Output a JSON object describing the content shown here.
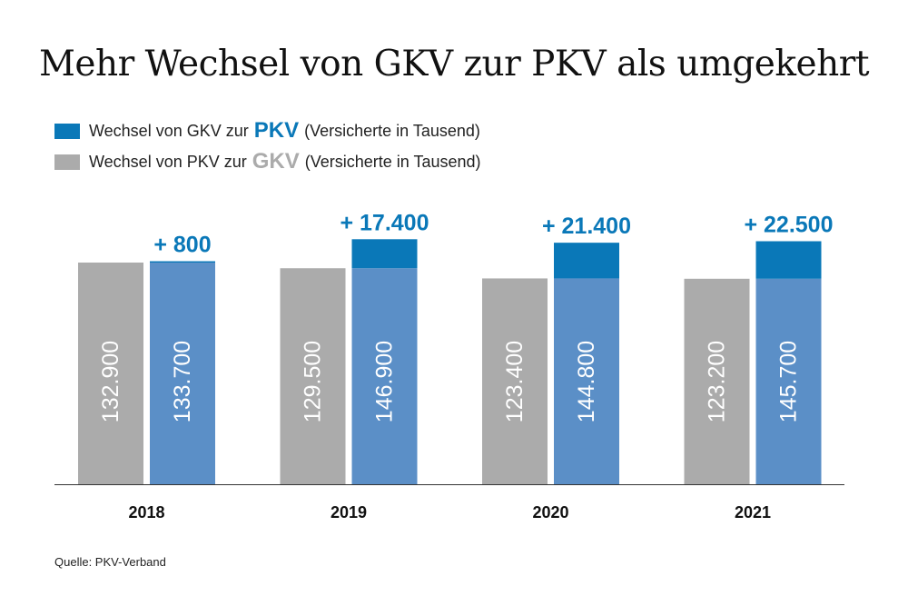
{
  "title": "Mehr Wechsel von GKV zur PKV als umgekehrt",
  "legend": [
    {
      "prefix": "Wechsel von GKV zur",
      "strong": "PKV",
      "suffix": "(Versicherte in Tausend)",
      "color": "#0a78b8"
    },
    {
      "prefix": "Wechsel von PKV zur",
      "strong": "GKV",
      "suffix": "(Versicherte in Tausend)",
      "color": "#ababab"
    }
  ],
  "source": "Quelle: PKV-Verband",
  "chart_data": {
    "type": "bar",
    "categories": [
      "2018",
      "2019",
      "2020",
      "2021"
    ],
    "series": [
      {
        "name": "Wechsel von PKV zur GKV",
        "values": [
          132900,
          129500,
          123400,
          123200
        ],
        "labels": [
          "132.900",
          "129.500",
          "123.400",
          "123.200"
        ],
        "color": "#ababab"
      },
      {
        "name": "Wechsel von GKV zur PKV",
        "values": [
          133700,
          146900,
          144800,
          145700
        ],
        "labels": [
          "133.700",
          "146.900",
          "144.800",
          "145.700"
        ],
        "color": "#5b8fc7",
        "excess_color": "#0a78b8"
      }
    ],
    "differences": [
      "+ 800",
      "+ 17.400",
      "+ 21.400",
      "+ 22.500"
    ],
    "ylim": [
      0,
      160000
    ],
    "grid": false
  }
}
